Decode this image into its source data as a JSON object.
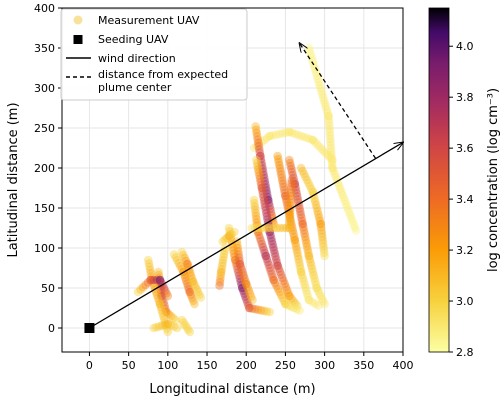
{
  "chart_data": {
    "type": "scatter",
    "title": "",
    "xlabel": "Longitudinal distance (m)",
    "ylabel": "Latitudinal distance (m)",
    "xlim": [
      -35,
      400
    ],
    "ylim": [
      -30,
      400
    ],
    "xticks": [
      0,
      50,
      100,
      150,
      200,
      250,
      300,
      350,
      400
    ],
    "yticks": [
      0,
      50,
      100,
      150,
      200,
      250,
      300,
      350,
      400
    ],
    "grid": true,
    "legend": {
      "placement": "top-left",
      "entries": [
        {
          "key": "measurement",
          "label": "Measurement UAV"
        },
        {
          "key": "seeding",
          "label": "Seeding UAV"
        },
        {
          "key": "wind",
          "label": "wind direction"
        },
        {
          "key": "distance",
          "label": "distance from expected plume center"
        }
      ]
    },
    "colorbar": {
      "label": "log concentration (log cm⁻³)",
      "range": [
        2.8,
        4.15
      ],
      "ticks": [
        "2.8",
        "3.0",
        "3.2",
        "3.4",
        "3.6",
        "3.8",
        "4.0"
      ],
      "colormap": "inferno_r"
    },
    "seeding_uav": {
      "x": 0,
      "y": 0
    },
    "wind_direction": {
      "from": [
        0,
        0
      ],
      "to": [
        400,
        232
      ]
    },
    "plume_distance": {
      "from": [
        365,
        212
      ],
      "to": [
        268,
        356
      ]
    },
    "flight_tracks": [
      {
        "points": [
          [
            340,
            122
          ],
          [
            310,
            200
          ],
          [
            305,
            265
          ],
          [
            280,
            350
          ]
        ],
        "c": [
          2.85,
          2.9,
          2.9,
          2.85
        ]
      },
      {
        "points": [
          [
            210,
            225
          ],
          [
            230,
            240
          ],
          [
            255,
            245
          ],
          [
            285,
            235
          ],
          [
            310,
            210
          ]
        ],
        "c": [
          2.9,
          2.9,
          2.9,
          2.9,
          2.9
        ]
      },
      {
        "points": [
          [
            212,
            252
          ],
          [
            218,
            215
          ],
          [
            228,
            160
          ],
          [
            235,
            130
          ]
        ],
        "c": [
          3.1,
          3.6,
          3.9,
          3.2
        ]
      },
      {
        "points": [
          [
            213,
            210
          ],
          [
            220,
            175
          ],
          [
            230,
            120
          ],
          [
            240,
            78
          ],
          [
            255,
            40
          ],
          [
            265,
            28
          ]
        ],
        "c": [
          3.0,
          3.5,
          3.8,
          3.6,
          3.2,
          3.0
        ]
      },
      {
        "points": [
          [
            210,
            160
          ],
          [
            215,
            120
          ],
          [
            225,
            90
          ],
          [
            235,
            60
          ],
          [
            250,
            30
          ],
          [
            268,
            22
          ]
        ],
        "c": [
          3.0,
          3.3,
          3.7,
          3.4,
          3.0,
          2.9
        ]
      },
      {
        "points": [
          [
            240,
            215
          ],
          [
            250,
            165
          ],
          [
            262,
            110
          ],
          [
            270,
            70
          ],
          [
            280,
            35
          ],
          [
            292,
            28
          ]
        ],
        "c": [
          3.2,
          3.4,
          3.2,
          3.0,
          2.9,
          2.9
        ]
      },
      {
        "points": [
          [
            255,
            210
          ],
          [
            262,
            180
          ],
          [
            272,
            130
          ],
          [
            280,
            90
          ],
          [
            290,
            50
          ],
          [
            300,
            30
          ]
        ],
        "c": [
          3.3,
          3.6,
          3.4,
          3.1,
          2.95,
          2.9
        ]
      },
      {
        "points": [
          [
            270,
            200
          ],
          [
            285,
            170
          ],
          [
            295,
            130
          ],
          [
            300,
            90
          ]
        ],
        "c": [
          3.1,
          3.0,
          3.2,
          2.95
        ]
      },
      {
        "points": [
          [
            207,
            125
          ],
          [
            255,
            125
          ],
          [
            258,
            185
          ]
        ],
        "c": [
          2.95,
          3.1,
          3.4
        ]
      },
      {
        "points": [
          [
            178,
            125
          ],
          [
            186,
            85
          ],
          [
            195,
            50
          ],
          [
            204,
            25
          ],
          [
            230,
            20
          ]
        ],
        "c": [
          3.0,
          3.3,
          3.9,
          3.5,
          3.0
        ]
      },
      {
        "points": [
          [
            188,
            108
          ],
          [
            192,
            80
          ],
          [
            200,
            55
          ],
          [
            208,
            35
          ]
        ],
        "c": [
          3.1,
          3.5,
          3.3,
          3.1
        ]
      },
      {
        "points": [
          [
            166,
            53
          ],
          [
            168,
            70
          ],
          [
            173,
            100
          ]
        ],
        "c": [
          3.4,
          3.1,
          3.0
        ]
      },
      {
        "points": [
          [
            108,
            92
          ],
          [
            120,
            70
          ],
          [
            128,
            45
          ],
          [
            134,
            30
          ]
        ],
        "c": [
          3.0,
          3.2,
          3.4,
          3.1
        ]
      },
      {
        "points": [
          [
            118,
            95
          ],
          [
            125,
            80
          ],
          [
            132,
            58
          ],
          [
            142,
            38
          ]
        ],
        "c": [
          3.0,
          3.3,
          3.1,
          3.0
        ]
      },
      {
        "points": [
          [
            88,
            70
          ],
          [
            92,
            40
          ],
          [
            98,
            20
          ],
          [
            110,
            10
          ]
        ],
        "c": [
          3.1,
          3.6,
          3.3,
          3.0
        ]
      },
      {
        "points": [
          [
            75,
            85
          ],
          [
            80,
            60
          ],
          [
            90,
            30
          ],
          [
            100,
            -5
          ]
        ],
        "c": [
          3.0,
          3.2,
          3.1,
          3.0
        ]
      },
      {
        "points": [
          [
            62,
            45
          ],
          [
            78,
            60
          ],
          [
            90,
            60
          ],
          [
            100,
            40
          ]
        ],
        "c": [
          3.0,
          3.5,
          3.9,
          3.3
        ]
      },
      {
        "points": [
          [
            82,
            0
          ],
          [
            100,
            5
          ],
          [
            112,
            0
          ]
        ],
        "c": [
          3.0,
          3.1,
          3.0
        ]
      },
      {
        "points": [
          [
            118,
            10
          ],
          [
            128,
            -5
          ]
        ],
        "c": [
          3.0,
          3.0
        ]
      },
      {
        "points": [
          [
            170,
            108
          ],
          [
            178,
            115
          ],
          [
            185,
            120
          ]
        ],
        "c": [
          3.0,
          3.1,
          3.0
        ]
      }
    ]
  }
}
